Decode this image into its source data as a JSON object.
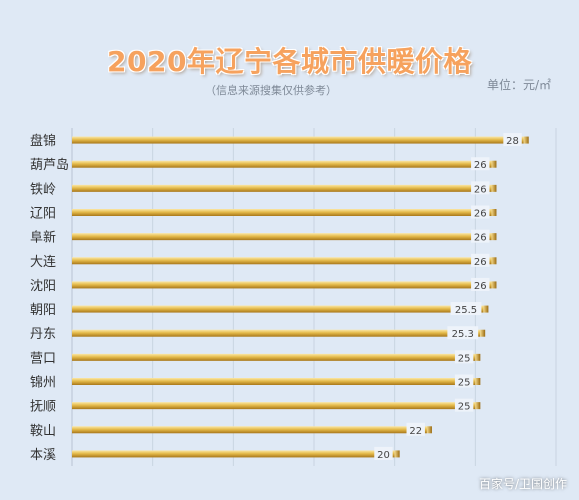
{
  "chart_data": {
    "type": "bar",
    "orientation": "horizontal",
    "title": "2020年辽宁各城市供暖价格",
    "subtitle": "（信息来源搜集仅供参考）",
    "unit_label": "单位：元/㎡",
    "categories": [
      "盘锦",
      "葫芦岛",
      "铁岭",
      "辽阳",
      "阜新",
      "大连",
      "沈阳",
      "朝阳",
      "丹东",
      "营口",
      "锦州",
      "抚顺",
      "鞍山",
      "本溪"
    ],
    "values": [
      28,
      26,
      26,
      26,
      26,
      26,
      26,
      25.5,
      25.3,
      25,
      25,
      25,
      22,
      20
    ],
    "xlim": [
      0,
      30
    ],
    "grid": true,
    "legend": "none",
    "bar_color": "#e0b64a",
    "bar_edge_color": "#9a6a10",
    "background": "#dfe9f5"
  },
  "watermark": "百家号/卫国创作"
}
